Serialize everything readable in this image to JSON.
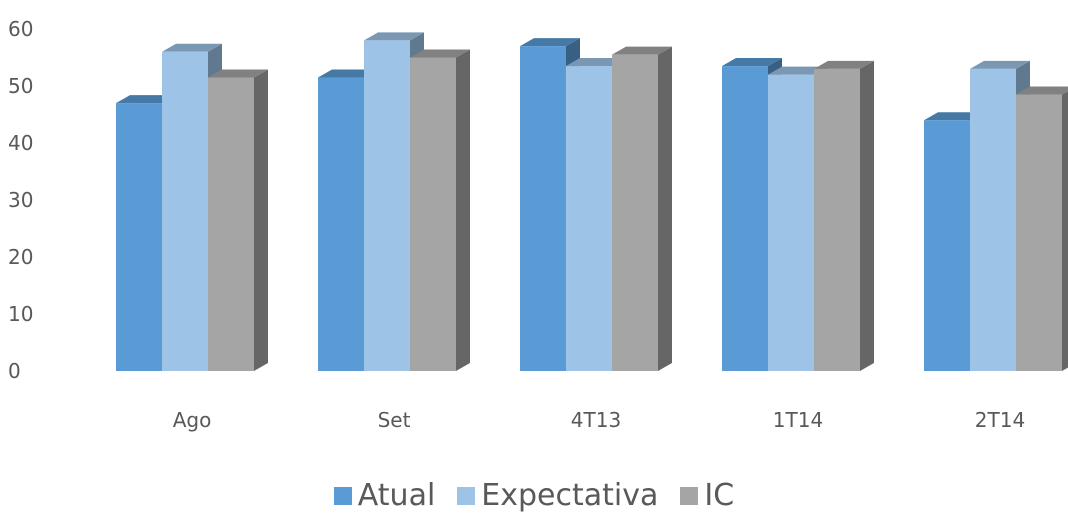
{
  "chart_data": {
    "type": "bar",
    "categories": [
      "Ago",
      "Set",
      "4T13",
      "1T14",
      "2T14"
    ],
    "series": [
      {
        "name": "Atual",
        "values": [
          47,
          51.5,
          57,
          53.5,
          44
        ],
        "color": "#5B9BD5"
      },
      {
        "name": "Expectativa",
        "values": [
          56,
          58,
          53.5,
          52,
          53
        ],
        "color": "#9DC3E6"
      },
      {
        "name": "IC",
        "values": [
          51.5,
          55,
          55.5,
          53,
          48.5
        ],
        "color": "#A5A5A5"
      }
    ],
    "ylim": [
      0,
      60
    ],
    "yticks": [
      "0",
      "10",
      "20",
      "30",
      "40",
      "50",
      "60"
    ],
    "gridlines": false,
    "legend_position": "bottom",
    "style": "3d-clustered"
  }
}
